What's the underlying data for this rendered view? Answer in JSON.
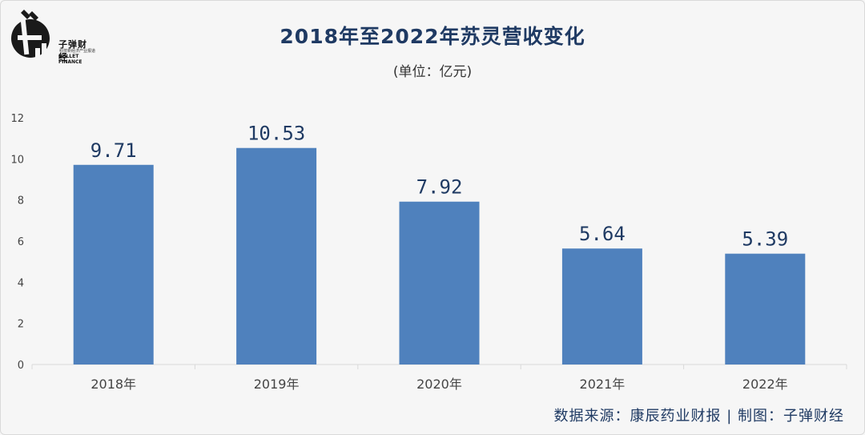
{
  "logo": {
    "cn": "子弹财经",
    "tagline": "科技新经济产业报道",
    "en": "BULLET FINANCE"
  },
  "footer": {
    "source": "数据来源：康辰药业财报  |  制图：子弹财经"
  },
  "colors": {
    "bar": "#4f81bd",
    "title": "#1f3a63",
    "axis_text": "#444444",
    "grid": "#d9d9d9"
  },
  "chart_data": {
    "type": "bar",
    "title": "2018年至2022年苏灵营收变化",
    "subtitle": "(单位：亿元)",
    "categories": [
      "2018年",
      "2019年",
      "2020年",
      "2021年",
      "2022年"
    ],
    "values": [
      9.71,
      10.53,
      7.92,
      5.64,
      5.39
    ],
    "data_labels": [
      "9.71",
      "10.53",
      "7.92",
      "5.64",
      "5.39"
    ],
    "ylim": [
      0,
      12
    ],
    "yticks": [
      0,
      2,
      4,
      6,
      8,
      10,
      12
    ],
    "grid": false,
    "legend": "none"
  }
}
